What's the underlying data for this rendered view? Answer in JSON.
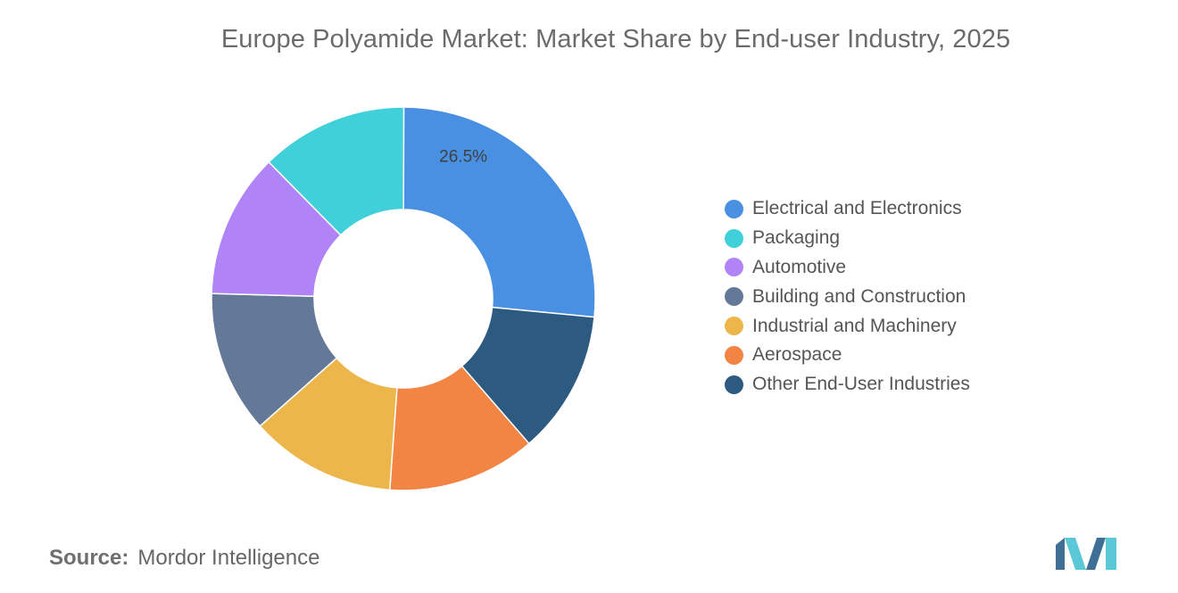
{
  "title": "Europe Polyamide Market: Market Share by End-user Industry, 2025",
  "source": {
    "label": "Source:",
    "value": "Mordor Intelligence"
  },
  "colors": {
    "Electrical and Electronics": "#4a90e2",
    "Packaging": "#40d0da",
    "Automotive": "#b084f7",
    "Building and Construction": "#647897",
    "Industrial and Machinery": "#ecb64b",
    "Aerospace": "#f28444",
    "Other End-User Industries": "#2d5a80"
  },
  "chart_data": {
    "type": "pie",
    "variant": "donut",
    "title": "Europe Polyamide Market: Market Share by End-user Industry, 2025",
    "legend_position": "right",
    "categories": [
      "Electrical and Electronics",
      "Other End-User Industries",
      "Aerospace",
      "Industrial and Machinery",
      "Building and Construction",
      "Automotive",
      "Packaging"
    ],
    "values": [
      26.5,
      12.1,
      12.5,
      12.3,
      12.0,
      12.2,
      12.4
    ],
    "data_labels": [
      "26.5%",
      "",
      "",
      "",
      "",
      "",
      ""
    ],
    "legend": [
      "Electrical and Electronics",
      "Packaging",
      "Automotive",
      "Building and Construction",
      "Industrial and Machinery",
      "Aerospace",
      "Other End-User Industries"
    ]
  }
}
